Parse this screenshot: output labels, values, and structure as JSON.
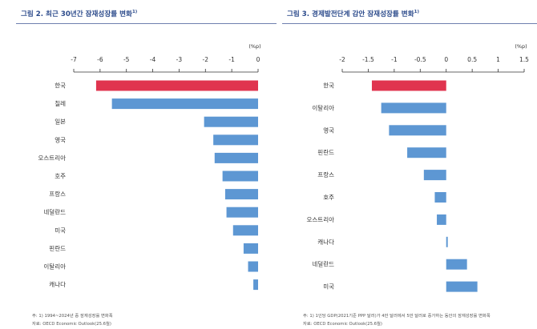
{
  "colors": {
    "highlight": "#e0344f",
    "bar": "#5d97d3",
    "title": "#2b4a8b",
    "axis": "#333333"
  },
  "chart_data": [
    {
      "type": "bar",
      "orientation": "horizontal",
      "title": "그림 2. 최근 30년간 잠재성장률 변화",
      "title_sup": "1)",
      "unit": "(%p)",
      "xlim": [
        -7,
        0
      ],
      "xticks": [
        -7,
        -6,
        -5,
        -4,
        -3,
        -2,
        -1,
        0
      ],
      "categories": [
        "한국",
        "칠레",
        "일본",
        "영국",
        "오스트리아",
        "호주",
        "프랑스",
        "네덜란드",
        "미국",
        "핀란드",
        "이탈리아",
        "캐나다"
      ],
      "values": [
        -6.15,
        -5.55,
        -2.05,
        -1.7,
        -1.65,
        -1.35,
        -1.25,
        -1.2,
        -0.95,
        -0.55,
        -0.38,
        -0.18
      ],
      "highlight": [
        "한국"
      ],
      "notes": [
        "주: 1) 1994~2024년 중 잠재성장률 변화폭",
        "자료: OECD Economic Outlook(25.6월)"
      ]
    },
    {
      "type": "bar",
      "orientation": "horizontal",
      "title": "그림 3. 경제발전단계 감안 잠재성장률 변화",
      "title_sup": "1)",
      "unit": "(%p)",
      "xlim": [
        -2,
        1.5
      ],
      "xticks": [
        -2,
        -1.5,
        -1,
        -0.5,
        0,
        0.5,
        1,
        1.5
      ],
      "categories": [
        "한국",
        "이탈리아",
        "영국",
        "핀란드",
        "프랑스",
        "호주",
        "오스트리아",
        "캐나다",
        "네덜란드",
        "미국"
      ],
      "values": [
        -1.43,
        -1.25,
        -1.1,
        -0.75,
        -0.43,
        -0.22,
        -0.18,
        0.03,
        0.4,
        0.6
      ],
      "highlight": [
        "한국"
      ],
      "notes": [
        "주: 1) 1인당 GDP(2021기준 PPP 달러)가 4만 달러에서 5만 달러로 증가하는 동안의 잠재성장률 변화폭",
        "자료: OECD Economic Outlook(25.6월)"
      ]
    }
  ]
}
